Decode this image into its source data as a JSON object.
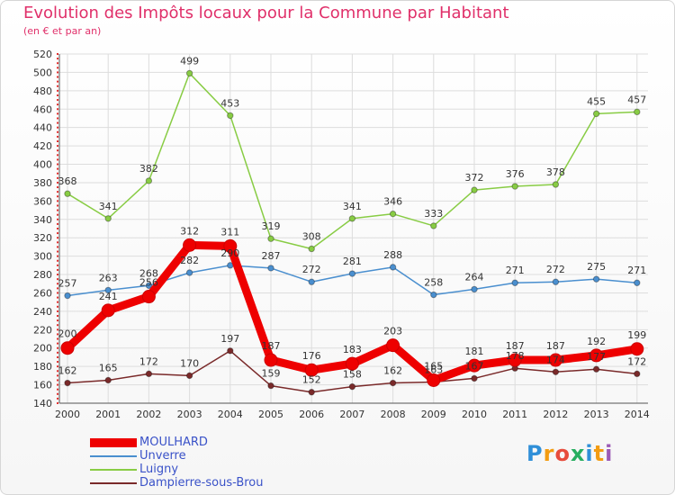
{
  "header": {
    "title": "Evolution des Impôts locaux pour la Commune par Habitant",
    "subtitle": "(en € et par an)"
  },
  "chart_data": {
    "type": "line",
    "title": "Evolution des Impôts locaux pour la Commune par Habitant",
    "subtitle": "(en € et par an)",
    "xlabel": "",
    "ylabel": "",
    "ylim": [
      140,
      520
    ],
    "yticks": [
      140,
      160,
      180,
      200,
      220,
      240,
      260,
      280,
      300,
      320,
      340,
      360,
      380,
      400,
      420,
      440,
      460,
      480,
      500,
      520
    ],
    "categories": [
      "2000",
      "2001",
      "2002",
      "2003",
      "2004",
      "2005",
      "2006",
      "2007",
      "2008",
      "2009",
      "2010",
      "2011",
      "2012",
      "2013",
      "2014"
    ],
    "grid": true,
    "legend_position": "bottom-left",
    "series": [
      {
        "name": "MOULHARD",
        "color": "#ee0000",
        "values": [
          200,
          241,
          256,
          312,
          311,
          187,
          176,
          183,
          203,
          165,
          181,
          187,
          187,
          192,
          199
        ],
        "labels": [
          "200",
          "241",
          "256",
          "312",
          "311",
          "187",
          "176",
          "183",
          "203",
          "165",
          "181",
          "187",
          "187",
          "192",
          "199"
        ]
      },
      {
        "name": "Unverre",
        "color": "#4a8fcf",
        "values": [
          257,
          263,
          268,
          282,
          290,
          287,
          272,
          281,
          288,
          258,
          264,
          271,
          272,
          275,
          271
        ],
        "labels": [
          "257",
          "263",
          "268",
          "282",
          "290",
          "287",
          "272",
          "281",
          "288",
          "258",
          "264",
          "271",
          "272",
          "275",
          "271"
        ]
      },
      {
        "name": "Luigny",
        "color": "#88cc44",
        "values": [
          368,
          341,
          382,
          499,
          453,
          319,
          308,
          341,
          346,
          333,
          372,
          376,
          378,
          455,
          457
        ],
        "labels": [
          "368",
          "341",
          "382",
          "499",
          "453",
          "319",
          "308",
          "341",
          "346",
          "333",
          "372",
          "376",
          "378",
          "455",
          "457"
        ]
      },
      {
        "name": "Dampierre-sous-Brou",
        "color": "#7a2a2a",
        "values": [
          162,
          165,
          172,
          170,
          197,
          159,
          152,
          158,
          162,
          163,
          167,
          178,
          174,
          177,
          172
        ],
        "labels": [
          "162",
          "165",
          "172",
          "170",
          "197",
          "159",
          "152",
          "158",
          "162",
          "163",
          "167",
          "178",
          "174",
          "177",
          "172"
        ]
      }
    ]
  },
  "legend": {
    "items": [
      {
        "label": "MOULHARD"
      },
      {
        "label": "Unverre"
      },
      {
        "label": "Luigny"
      },
      {
        "label": "Dampierre-sous-Brou"
      }
    ]
  },
  "logo": {
    "letters": [
      "P",
      "r",
      "o",
      "x",
      "i",
      "t",
      "i"
    ],
    "colors": [
      "#2f8fd8",
      "#f39c12",
      "#e74c3c",
      "#27ae60",
      "#2f8fd8",
      "#f39c12",
      "#9b59b6"
    ]
  }
}
